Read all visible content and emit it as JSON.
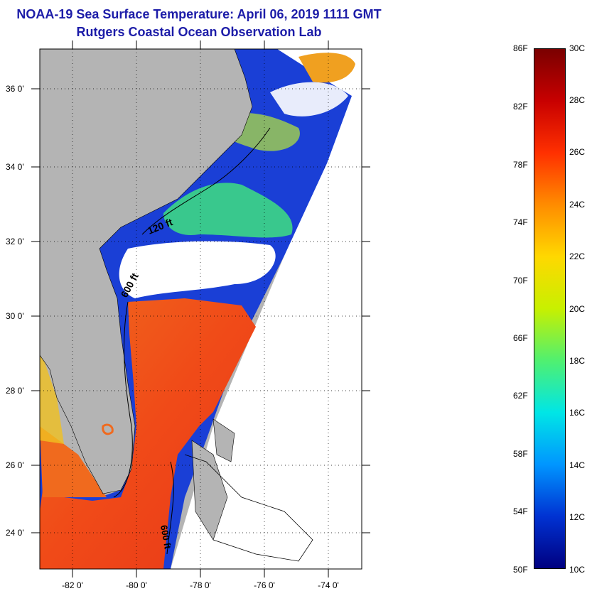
{
  "title": "NOAA-19 Sea Surface Temperature:  April 06, 2019 1111 GMT",
  "subtitle": "Rutgers Coastal Ocean Observation Lab",
  "map": {
    "lon_range": [
      -83,
      -73
    ],
    "lat_range": [
      23,
      37
    ],
    "lat_ticks": [
      "36 0'",
      "34 0'",
      "32 0'",
      "30 0'",
      "28 0'",
      "26 0'",
      "24 0'"
    ],
    "lon_ticks": [
      "-82 0'",
      "-80 0'",
      "-78 0'",
      "-76 0'",
      "-74 0'"
    ],
    "contour_labels": [
      "120 ft",
      "600 ft",
      "600 ft"
    ],
    "colors": {
      "land": "#b4b4b4",
      "cloud_mask": "#ffffff",
      "cold_water": "#1a3fd6",
      "warm_water": "#f0501e"
    }
  },
  "colorbar": {
    "fahrenheit_labels": [
      "86F",
      "82F",
      "78F",
      "74F",
      "70F",
      "66F",
      "62F",
      "58F",
      "54F",
      "50F"
    ],
    "celsius_labels": [
      "30C",
      "28C",
      "26C",
      "24C",
      "22C",
      "20C",
      "18C",
      "16C",
      "14C",
      "12C",
      "10C"
    ],
    "range_c": [
      10,
      30
    ],
    "range_f": [
      50,
      86
    ],
    "colormap": [
      "#7a0000",
      "#c80000",
      "#ff3000",
      "#ff8c00",
      "#ffd800",
      "#c8f000",
      "#50f070",
      "#00e6e6",
      "#0096ff",
      "#0032d2",
      "#000080"
    ]
  }
}
